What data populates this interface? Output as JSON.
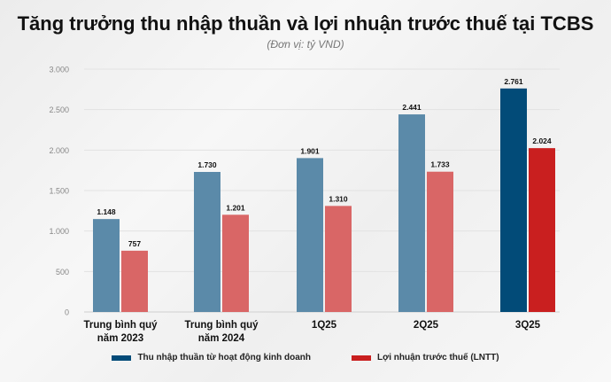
{
  "chart_data": {
    "type": "bar",
    "title": "Tăng trưởng thu nhập thuần và lợi nhuận trước thuế tại TCBS",
    "subtitle": "(Đơn vị: tỷ VND)",
    "categories": [
      [
        "Trung bình quý",
        "năm 2023"
      ],
      [
        "Trung bình quý",
        "năm 2024"
      ],
      [
        "1Q25"
      ],
      [
        "2Q25"
      ],
      [
        "3Q25"
      ]
    ],
    "series": [
      {
        "name": "Thu nhập thuần từ hoạt động kinh doanh",
        "values": [
          1148,
          1730,
          1901,
          2441,
          2761
        ],
        "labels": [
          "1.148",
          "1.730",
          "1.901",
          "2.441",
          "2.761"
        ],
        "color": "#5b8aa9",
        "highlight_color": "#024b78"
      },
      {
        "name": "Lợi nhuận trước thuế (LNTT)",
        "values": [
          757,
          1201,
          1310,
          1733,
          2024
        ],
        "labels": [
          "757",
          "1.201",
          "1.310",
          "1.733",
          "2.024"
        ],
        "color": "#d96666",
        "highlight_color": "#c91f1f"
      }
    ],
    "highlight_category": "3Q25",
    "yticks": [
      0,
      500,
      1000,
      1500,
      2000,
      2500,
      3000
    ],
    "ytick_labels": [
      "0",
      "500",
      "1.000",
      "1.500",
      "2.000",
      "2.500",
      "3.000"
    ],
    "ylim": [
      0,
      3000
    ],
    "grid": true,
    "legend": "bottom"
  }
}
